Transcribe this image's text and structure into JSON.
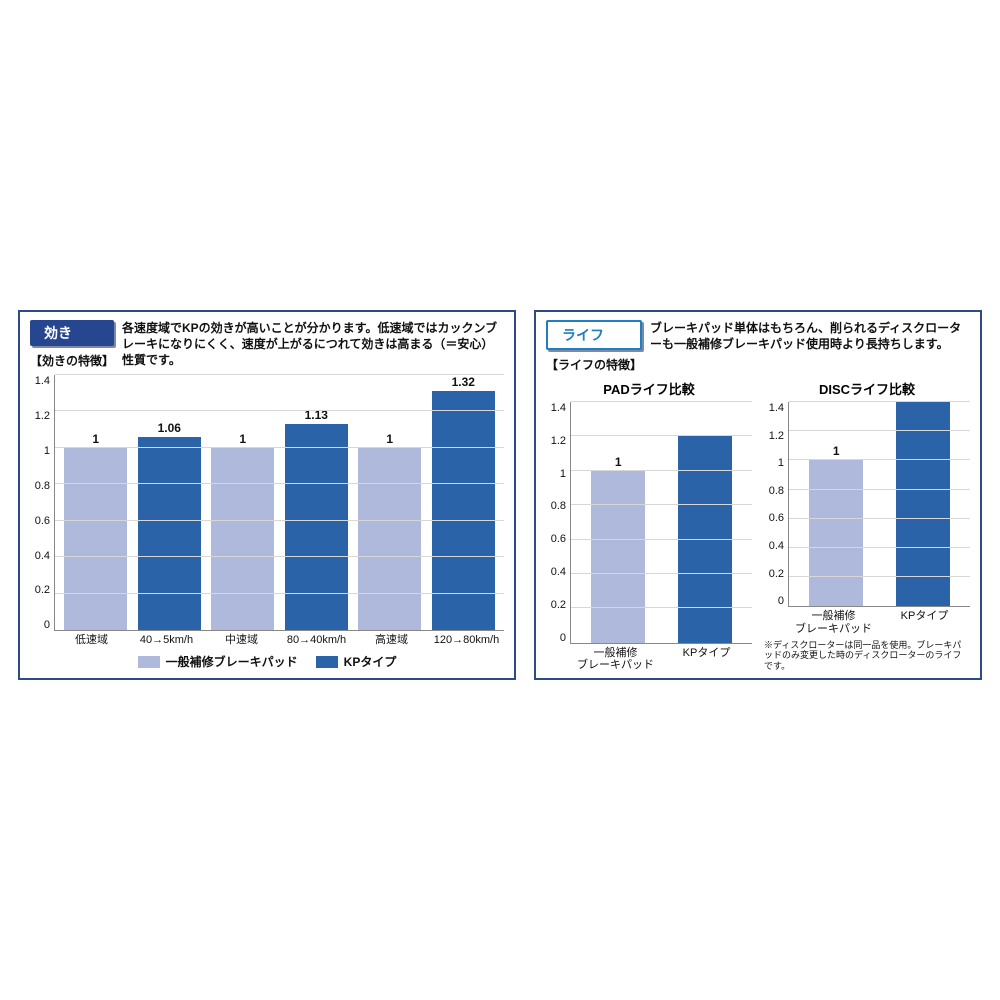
{
  "colors": {
    "series_light": "#aeb9dc",
    "series_dark": "#2b63a8",
    "badge_bg": "#26468f",
    "badge2_border": "#1f7fbf",
    "panel_border": "#2d4b8a",
    "grid": "#d7d7d7",
    "axis": "#888888",
    "text": "#111111"
  },
  "left": {
    "badge": "効き",
    "subheader": "【効きの特徴】",
    "description": "各速度域でKPの効きが高いことが分かります。低速域ではカックンブレーキになりにくく、速度が上がるにつれて効きは高まる（＝安心）性質です。",
    "chart": {
      "type": "bar",
      "ymin": 0,
      "ymax": 1.4,
      "ytick_step": 0.2,
      "categories": [
        "低速域",
        "40→5km/h",
        "中速域",
        "80→40km/h",
        "高速域",
        "120→80km/h"
      ],
      "values": [
        1,
        1.06,
        1,
        1.13,
        1,
        1.32
      ],
      "value_labels": [
        "1",
        "1.06",
        "1",
        "1.13",
        "1",
        "1.32"
      ],
      "bar_series": [
        0,
        1,
        0,
        1,
        0,
        1
      ]
    },
    "legend": [
      {
        "swatch": "#aeb9dc",
        "label": "一般補修ブレーキパッド"
      },
      {
        "swatch": "#2b63a8",
        "label": "KPタイプ"
      }
    ]
  },
  "right": {
    "badge": "ライフ",
    "subheader": "【ライフの特徴】",
    "description": "ブレーキパッド単体はもちろん、削られるディスクローターも一般補修ブレーキパッド使用時より長持ちします。",
    "pad": {
      "title": "PADライフ比較",
      "ymin": 0,
      "ymax": 1.4,
      "ytick_step": 0.2,
      "categories": [
        "一般補修\nブレーキパッド",
        "KPタイプ"
      ],
      "values": [
        1,
        1.2
      ],
      "value_labels": [
        "1",
        ""
      ],
      "bar_series": [
        0,
        1
      ]
    },
    "disc": {
      "title": "DISCライフ比較",
      "ymin": 0,
      "ymax": 1.4,
      "ytick_step": 0.2,
      "categories": [
        "一般補修\nブレーキパッド",
        "KPタイプ"
      ],
      "values": [
        1,
        1.4
      ],
      "value_labels": [
        "1",
        ""
      ],
      "bar_series": [
        0,
        1
      ]
    },
    "footnote": "※ディスクローターは同一品を使用。ブレーキパッドのみ変更した時のディスクローターのライフです。"
  }
}
